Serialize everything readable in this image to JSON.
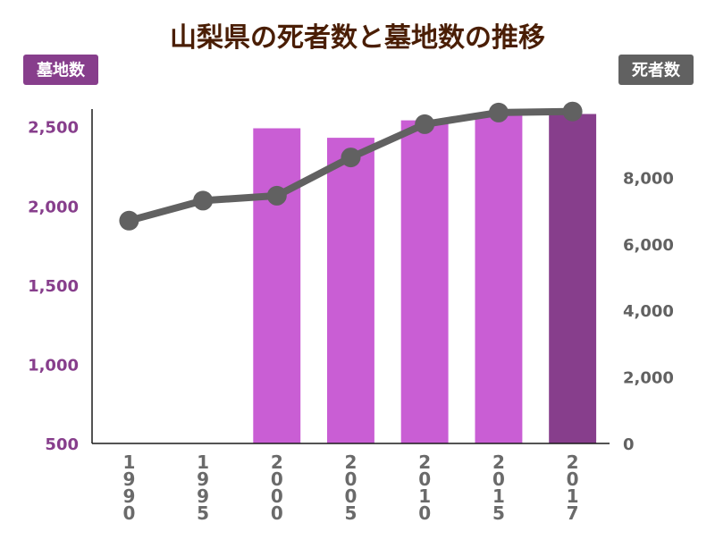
{
  "chart_data": {
    "type": "bar",
    "title": "山梨県の死者数と墓地数の推移",
    "categories": [
      "1990",
      "1995",
      "2000",
      "2005",
      "2010",
      "2015",
      "2017"
    ],
    "series": [
      {
        "name": "墓地数",
        "type": "bar",
        "axis": "left",
        "values": [
          null,
          null,
          2490,
          2430,
          2540,
          2580,
          2580
        ],
        "color": "#c95ed4",
        "highlight_color": "#873e8c",
        "highlight_index": 6
      },
      {
        "name": "死者数",
        "type": "line",
        "axis": "right",
        "values": [
          6700,
          7300,
          7450,
          8600,
          9600,
          9950,
          9980
        ],
        "color": "#616161"
      }
    ],
    "yaxis_left": {
      "label": "墓地数",
      "ylim": [
        500,
        2600
      ],
      "ticks": [
        500,
        1000,
        1500,
        2000,
        2500
      ],
      "tick_labels": [
        "500",
        "1,000",
        "1,500",
        "2,000",
        "2,500"
      ],
      "color": "#873e8c"
    },
    "yaxis_right": {
      "label": "死者数",
      "ylim": [
        0,
        10000
      ],
      "ticks": [
        0,
        2000,
        4000,
        6000,
        8000
      ],
      "tick_labels": [
        "0",
        "2,000",
        "4,000",
        "6,000",
        "8,000"
      ],
      "color": "#616161"
    },
    "grid": false,
    "legend": "none"
  }
}
